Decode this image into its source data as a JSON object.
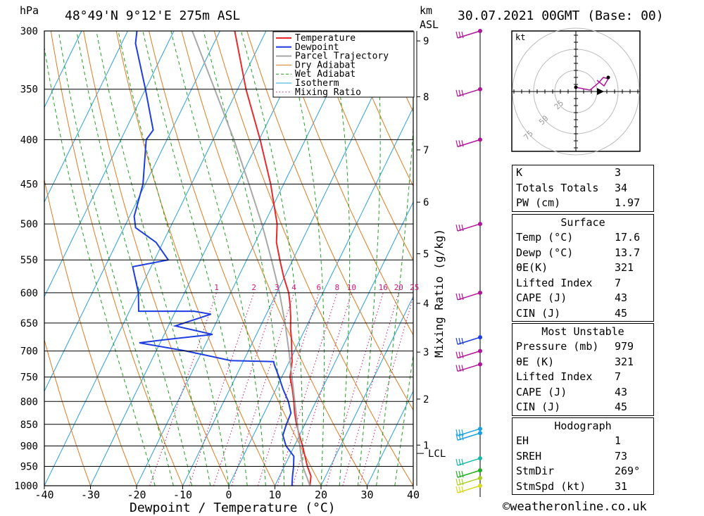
{
  "header": {
    "hpa_label": "hPa",
    "location": "48°49'N  9°12'E  275m  ASL",
    "km_label": "km",
    "asl_label": "ASL",
    "datetime": "30.07.2021  00GMT  (Base: 00)"
  },
  "chart_data": {
    "type": "line",
    "xlabel": "Dewpoint / Temperature (°C)",
    "ylabel_right": "Mixing Ratio (g/kg)",
    "xlim": [
      -40,
      40
    ],
    "ylim": [
      1000,
      300
    ],
    "x_ticks": [
      "-40",
      "-30",
      "-20",
      "-10",
      "0",
      "10",
      "20",
      "30",
      "40"
    ],
    "pressure_levels": [
      300,
      350,
      400,
      450,
      500,
      550,
      600,
      650,
      700,
      750,
      800,
      850,
      900,
      950,
      1000
    ],
    "km_ticks": [
      {
        "label": "1",
        "p": 898
      },
      {
        "label": "2",
        "p": 795
      },
      {
        "label": "3",
        "p": 702
      },
      {
        "label": "4",
        "p": 617
      },
      {
        "label": "5",
        "p": 541
      },
      {
        "label": "6",
        "p": 472
      },
      {
        "label": "7",
        "p": 411
      },
      {
        "label": "8",
        "p": 357
      },
      {
        "label": "9",
        "p": 308
      }
    ],
    "lcl": {
      "label": "LCL",
      "p": 918
    },
    "mixing_ratio_labels": [
      "1",
      "2",
      "3",
      "4",
      "6",
      "8",
      "10",
      "16",
      "20",
      "25"
    ],
    "mixing_ratio_values": [
      1,
      2,
      3,
      4,
      6,
      8,
      10,
      16,
      20,
      25
    ],
    "legend": [
      "Temperature",
      "Dewpoint",
      "Parcel Trajectory",
      "Dry Adiabat",
      "Wet Adiabat",
      "Isotherm",
      "Mixing Ratio"
    ],
    "series": [
      {
        "name": "Temperature",
        "color": "#e8292b",
        "points": [
          [
            1000,
            17.6
          ],
          [
            975,
            16.8
          ],
          [
            950,
            15.0
          ],
          [
            925,
            13.4
          ],
          [
            900,
            11.8
          ],
          [
            875,
            10.0
          ],
          [
            850,
            8.2
          ],
          [
            825,
            6.6
          ],
          [
            800,
            5.2
          ],
          [
            775,
            3.6
          ],
          [
            750,
            1.8
          ],
          [
            725,
            0.8
          ],
          [
            720,
            0.6
          ],
          [
            700,
            -0.6
          ],
          [
            680,
            -1.8
          ],
          [
            660,
            -3.2
          ],
          [
            640,
            -4.4
          ],
          [
            620,
            -5.8
          ],
          [
            600,
            -7.4
          ],
          [
            575,
            -10.2
          ],
          [
            550,
            -12.8
          ],
          [
            525,
            -15.4
          ],
          [
            500,
            -17.2
          ],
          [
            450,
            -22.8
          ],
          [
            400,
            -29.8
          ],
          [
            350,
            -38.2
          ],
          [
            300,
            -46.8
          ]
        ]
      },
      {
        "name": "Dewpoint",
        "color": "#1e3de0",
        "points": [
          [
            1000,
            13.7
          ],
          [
            975,
            12.8
          ],
          [
            950,
            12.0
          ],
          [
            925,
            11.0
          ],
          [
            900,
            8.2
          ],
          [
            875,
            6.4
          ],
          [
            850,
            6.0
          ],
          [
            825,
            5.8
          ],
          [
            800,
            4.0
          ],
          [
            775,
            1.6
          ],
          [
            750,
            -0.6
          ],
          [
            725,
            -3.0
          ],
          [
            720,
            -3.4
          ],
          [
            718,
            -12.8
          ],
          [
            700,
            -23.5
          ],
          [
            685,
            -34.5
          ],
          [
            680,
            -30.0
          ],
          [
            670,
            -19.5
          ],
          [
            655,
            -28.5
          ],
          [
            635,
            -22.0
          ],
          [
            630,
            -26.0
          ],
          [
            630,
            -38.0
          ],
          [
            600,
            -40.0
          ],
          [
            560,
            -44.0
          ],
          [
            550,
            -37.0
          ],
          [
            525,
            -41.5
          ],
          [
            505,
            -47.5
          ],
          [
            490,
            -49.0
          ],
          [
            450,
            -50.5
          ],
          [
            400,
            -54.5
          ],
          [
            390,
            -54.0
          ],
          [
            350,
            -60.0
          ],
          [
            310,
            -67.0
          ],
          [
            300,
            -68.0
          ]
        ]
      },
      {
        "name": "Parcel Trajectory",
        "color": "#a8a8a8",
        "points": [
          [
            1000,
            17.6
          ],
          [
            950,
            14.0
          ],
          [
            918,
            12.2
          ],
          [
            900,
            11.2
          ],
          [
            850,
            8.4
          ],
          [
            800,
            5.4
          ],
          [
            750,
            2.2
          ],
          [
            700,
            -1.2
          ],
          [
            650,
            -5.0
          ],
          [
            600,
            -9.4
          ],
          [
            550,
            -14.6
          ],
          [
            500,
            -20.5
          ],
          [
            450,
            -27.5
          ],
          [
            400,
            -35.5
          ],
          [
            350,
            -45.0
          ],
          [
            300,
            -56.0
          ]
        ]
      }
    ],
    "wind_barbs_label": "kt",
    "hodograph_rings": [
      "25",
      "50",
      "75"
    ]
  },
  "indices": {
    "general": [
      {
        "key": "K",
        "value": "3"
      },
      {
        "key": "Totals Totals",
        "value": "34"
      },
      {
        "key": "PW (cm)",
        "value": "1.97"
      }
    ],
    "surface_title": "Surface",
    "surface": [
      {
        "key": "Temp (°C)",
        "value": "17.6"
      },
      {
        "key": "Dewp (°C)",
        "value": "13.7"
      },
      {
        "key": "θE(K)",
        "value": "321"
      },
      {
        "key": "Lifted Index",
        "value": "7"
      },
      {
        "key": "CAPE (J)",
        "value": "43"
      },
      {
        "key": "CIN (J)",
        "value": "45"
      }
    ],
    "mu_title": "Most Unstable",
    "most_unstable": [
      {
        "key": "Pressure (mb)",
        "value": "979"
      },
      {
        "key": "θE (K)",
        "value": "321"
      },
      {
        "key": "Lifted Index",
        "value": "7"
      },
      {
        "key": "CAPE (J)",
        "value": "43"
      },
      {
        "key": "CIN (J)",
        "value": "45"
      }
    ],
    "hodo_title": "Hodograph",
    "hodograph": [
      {
        "key": "EH",
        "value": "1"
      },
      {
        "key": "SREH",
        "value": "73"
      },
      {
        "key": "StmDir",
        "value": "269°"
      },
      {
        "key": "StmSpd (kt)",
        "value": "31"
      }
    ]
  },
  "footer": "©weatheronline.co.uk",
  "colors": {
    "temperature": "#e8292b",
    "dewpoint": "#1e3de0",
    "parcel": "#a8a8a8",
    "dry_adiabat": "#e07a1f",
    "wet_adiabat": "#1ea21e",
    "isotherm": "#2aa0e0",
    "mixing_ratio": "#d0157a"
  }
}
